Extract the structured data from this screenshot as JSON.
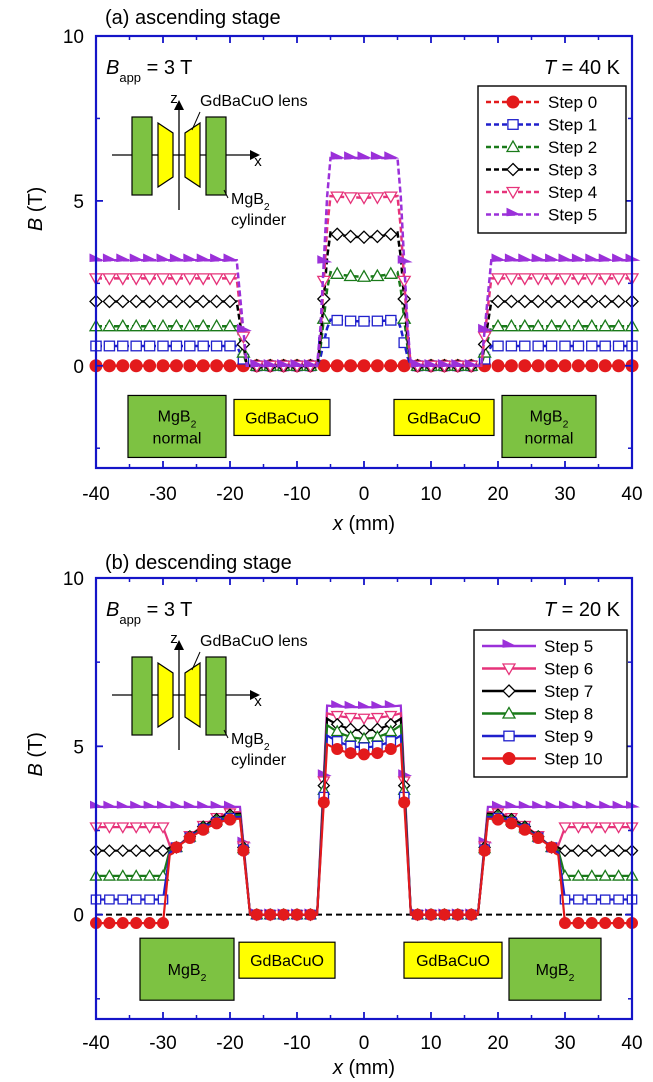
{
  "chart_data": [
    {
      "type": "line",
      "panel_label": "(a) ascending stage",
      "xlabel_var": "x",
      "xlabel_unit": " (mm)",
      "ylabel_var": "B",
      "ylabel_unit": " (T)",
      "xlim": [
        -40,
        40
      ],
      "ylim": [
        -3.1,
        10
      ],
      "xticks": [
        -40,
        -30,
        -20,
        -10,
        0,
        10,
        20,
        30,
        40
      ],
      "yticks": [
        0,
        5,
        10
      ],
      "grid": false,
      "legend_position": "top-right",
      "annotation_bapp": {
        "var": "B",
        "sub": "app",
        "text": " = 3 T"
      },
      "annotation_temp": {
        "var": "T",
        "text": " = 40 K"
      },
      "inset": {
        "lens_label": "GdBaCuO lens",
        "axis_z": "z",
        "axis_x": "x",
        "cyl_label_prefix": "MgB",
        "cyl_label_sub": "2",
        "cyl_label_line2": "cylinder"
      },
      "regions": [
        {
          "lines": [
            [
              "MgB",
              "2"
            ],
            [
              "normal"
            ]
          ],
          "color": "#7dc242"
        },
        {
          "lines": [
            [
              "GdBaCuO"
            ]
          ],
          "color": "#ffff00"
        },
        {
          "lines": [
            [
              "GdBaCuO"
            ]
          ],
          "color": "#ffff00"
        },
        {
          "lines": [
            [
              "MgB",
              "2"
            ],
            [
              "normal"
            ]
          ],
          "color": "#7dc242"
        }
      ],
      "series": [
        {
          "name": "Step 0",
          "color": "#e31a1c",
          "marker": "circle-filled",
          "dash": "dash",
          "plateau_outer": 0.0,
          "plateau_center": 0.0,
          "center_dip": 0.0
        },
        {
          "name": "Step 1",
          "color": "#1f1fcc",
          "marker": "square-open",
          "dash": "dash",
          "plateau_outer": 0.6,
          "plateau_center": 1.4,
          "center_dip": 0.05
        },
        {
          "name": "Step 2",
          "color": "#1a7a1a",
          "marker": "triangle-open",
          "dash": "dash",
          "plateau_outer": 1.2,
          "plateau_center": 2.85,
          "center_dip": 0.15
        },
        {
          "name": "Step 3",
          "color": "#000000",
          "marker": "diamond-open",
          "dash": "dash",
          "plateau_outer": 1.95,
          "plateau_center": 4.05,
          "center_dip": 0.15
        },
        {
          "name": "Step 4",
          "color": "#e6337a",
          "marker": "triangledown-open",
          "dash": "dash",
          "plateau_outer": 2.65,
          "plateau_center": 5.15,
          "center_dip": 0.05
        },
        {
          "name": "Step 5",
          "color": "#9b30d9",
          "marker": "arrow-filled",
          "dash": "dash",
          "plateau_outer": 3.2,
          "plateau_center": 6.3,
          "center_dip": 0.0
        }
      ]
    },
    {
      "type": "line",
      "panel_label": "(b) descending stage",
      "xlabel_var": "x",
      "xlabel_unit": " (mm)",
      "ylabel_var": "B",
      "ylabel_unit": " (T)",
      "xlim": [
        -40,
        40
      ],
      "ylim": [
        -3.1,
        10
      ],
      "xticks": [
        -40,
        -30,
        -20,
        -10,
        0,
        10,
        20,
        30,
        40
      ],
      "yticks": [
        0,
        5,
        10
      ],
      "grid": false,
      "legend_position": "top-right",
      "annotation_bapp": {
        "var": "B",
        "sub": "app",
        "text": " = 3 T"
      },
      "annotation_temp": {
        "var": "T",
        "text": " = 20 K"
      },
      "inset": {
        "lens_label": "GdBaCuO lens",
        "axis_z": "z",
        "axis_x": "x",
        "cyl_label_prefix": "MgB",
        "cyl_label_sub": "2",
        "cyl_label_line2": "cylinder"
      },
      "regions": [
        {
          "lines": [
            [
              "MgB",
              "2"
            ]
          ],
          "color": "#7dc242"
        },
        {
          "lines": [
            [
              "GdBaCuO"
            ]
          ],
          "color": "#ffff00"
        },
        {
          "lines": [
            [
              "GdBaCuO"
            ]
          ],
          "color": "#ffff00"
        },
        {
          "lines": [
            [
              "MgB",
              "2"
            ]
          ],
          "color": "#7dc242"
        }
      ],
      "series": [
        {
          "name": "Step 5",
          "color": "#9b30d9",
          "marker": "arrow-filled",
          "dash": "solid",
          "outer": 3.2,
          "hump": 3.2,
          "center": 6.2,
          "dip": 0.05,
          "ramp": 0
        },
        {
          "name": "Step 6",
          "color": "#e6337a",
          "marker": "triangledown-open",
          "dash": "solid",
          "outer": 2.6,
          "hump": 3.05,
          "center": 5.95,
          "dip": 0.15,
          "ramp": 1
        },
        {
          "name": "Step 7",
          "color": "#000000",
          "marker": "diamond-open",
          "dash": "solid",
          "outer": 1.9,
          "hump": 3.0,
          "center": 5.75,
          "dip": 0.35,
          "ramp": 1
        },
        {
          "name": "Step 8",
          "color": "#1a7a1a",
          "marker": "triangle-open",
          "dash": "solid",
          "outer": 1.15,
          "hump": 2.95,
          "center": 5.55,
          "dip": 0.4,
          "ramp": 1
        },
        {
          "name": "Step 9",
          "color": "#1f1fcc",
          "marker": "square-open",
          "dash": "solid",
          "outer": 0.45,
          "hump": 2.9,
          "center": 5.25,
          "dip": 0.35,
          "ramp": 1
        },
        {
          "name": "Step 10",
          "color": "#e31a1c",
          "marker": "circle-filled",
          "dash": "solid",
          "outer": -0.25,
          "hump": 2.85,
          "center": 5.0,
          "dip": 0.3,
          "ramp": 1
        }
      ],
      "reference_line": {
        "y": 0,
        "color": "#000000",
        "dash": "dash"
      }
    }
  ]
}
